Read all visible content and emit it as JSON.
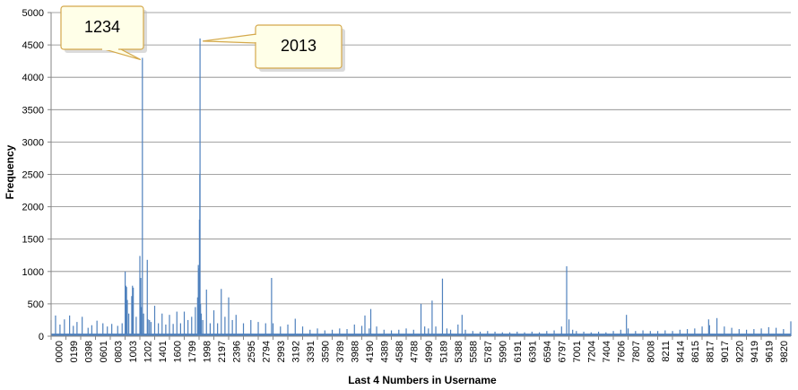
{
  "chart_data": {
    "type": "bar",
    "title": "",
    "xlabel": "Last 4 Numbers in Username",
    "ylabel": "Frequency",
    "ylim": [
      0,
      5000
    ],
    "y_ticks": [
      0,
      500,
      1000,
      1500,
      2000,
      2500,
      3000,
      3500,
      4000,
      4500,
      5000
    ],
    "x_range": [
      0,
      9999
    ],
    "x_tick_labels": [
      "0000",
      "0199",
      "0398",
      "0601",
      "0803",
      "1003",
      "1202",
      "1401",
      "1600",
      "1799",
      "1998",
      "2197",
      "2396",
      "2595",
      "2794",
      "2993",
      "3192",
      "3391",
      "3590",
      "3789",
      "3988",
      "4190",
      "4389",
      "4588",
      "4788",
      "4990",
      "5189",
      "5388",
      "5588",
      "5787",
      "5990",
      "6191",
      "6391",
      "6594",
      "6797",
      "7001",
      "7204",
      "7404",
      "7606",
      "7807",
      "8008",
      "8211",
      "8414",
      "8615",
      "8817",
      "9017",
      "9220",
      "9419",
      "9619",
      "9820"
    ],
    "bar_color": "#4F81BD",
    "gridlines": true,
    "points": [
      {
        "x": 0,
        "y": 250
      },
      {
        "x": 60,
        "y": 320
      },
      {
        "x": 120,
        "y": 180
      },
      {
        "x": 180,
        "y": 260
      },
      {
        "x": 250,
        "y": 320
      },
      {
        "x": 300,
        "y": 160
      },
      {
        "x": 350,
        "y": 220
      },
      {
        "x": 420,
        "y": 300
      },
      {
        "x": 500,
        "y": 130
      },
      {
        "x": 550,
        "y": 170
      },
      {
        "x": 620,
        "y": 240
      },
      {
        "x": 700,
        "y": 200
      },
      {
        "x": 760,
        "y": 150
      },
      {
        "x": 820,
        "y": 190
      },
      {
        "x": 900,
        "y": 160
      },
      {
        "x": 960,
        "y": 200
      },
      {
        "x": 1001,
        "y": 1000
      },
      {
        "x": 1010,
        "y": 780
      },
      {
        "x": 1020,
        "y": 760
      },
      {
        "x": 1030,
        "y": 560
      },
      {
        "x": 1050,
        "y": 350
      },
      {
        "x": 1090,
        "y": 620
      },
      {
        "x": 1100,
        "y": 780
      },
      {
        "x": 1111,
        "y": 750
      },
      {
        "x": 1150,
        "y": 300
      },
      {
        "x": 1200,
        "y": 1240
      },
      {
        "x": 1212,
        "y": 900
      },
      {
        "x": 1220,
        "y": 450
      },
      {
        "x": 1234,
        "y": 4300
      },
      {
        "x": 1250,
        "y": 350
      },
      {
        "x": 1300,
        "y": 1180
      },
      {
        "x": 1310,
        "y": 260
      },
      {
        "x": 1330,
        "y": 250
      },
      {
        "x": 1350,
        "y": 220
      },
      {
        "x": 1400,
        "y": 470
      },
      {
        "x": 1450,
        "y": 200
      },
      {
        "x": 1500,
        "y": 350
      },
      {
        "x": 1550,
        "y": 180
      },
      {
        "x": 1600,
        "y": 330
      },
      {
        "x": 1650,
        "y": 190
      },
      {
        "x": 1700,
        "y": 380
      },
      {
        "x": 1750,
        "y": 200
      },
      {
        "x": 1800,
        "y": 380
      },
      {
        "x": 1850,
        "y": 250
      },
      {
        "x": 1900,
        "y": 300
      },
      {
        "x": 1950,
        "y": 450
      },
      {
        "x": 1980,
        "y": 600
      },
      {
        "x": 1990,
        "y": 1100
      },
      {
        "x": 2000,
        "y": 1050
      },
      {
        "x": 2005,
        "y": 1800
      },
      {
        "x": 2010,
        "y": 2500
      },
      {
        "x": 2013,
        "y": 4600
      },
      {
        "x": 2020,
        "y": 500
      },
      {
        "x": 2030,
        "y": 350
      },
      {
        "x": 2050,
        "y": 250
      },
      {
        "x": 2100,
        "y": 720
      },
      {
        "x": 2150,
        "y": 200
      },
      {
        "x": 2200,
        "y": 400
      },
      {
        "x": 2250,
        "y": 200
      },
      {
        "x": 2300,
        "y": 730
      },
      {
        "x": 2350,
        "y": 300
      },
      {
        "x": 2400,
        "y": 600
      },
      {
        "x": 2450,
        "y": 250
      },
      {
        "x": 2500,
        "y": 330
      },
      {
        "x": 2600,
        "y": 200
      },
      {
        "x": 2700,
        "y": 250
      },
      {
        "x": 2800,
        "y": 220
      },
      {
        "x": 2900,
        "y": 200
      },
      {
        "x": 2980,
        "y": 900
      },
      {
        "x": 3000,
        "y": 200
      },
      {
        "x": 3100,
        "y": 150
      },
      {
        "x": 3200,
        "y": 180
      },
      {
        "x": 3300,
        "y": 270
      },
      {
        "x": 3400,
        "y": 150
      },
      {
        "x": 3500,
        "y": 100
      },
      {
        "x": 3600,
        "y": 120
      },
      {
        "x": 3700,
        "y": 90
      },
      {
        "x": 3800,
        "y": 100
      },
      {
        "x": 3900,
        "y": 120
      },
      {
        "x": 4000,
        "y": 110
      },
      {
        "x": 4100,
        "y": 180
      },
      {
        "x": 4200,
        "y": 160
      },
      {
        "x": 4242,
        "y": 320
      },
      {
        "x": 4300,
        "y": 120
      },
      {
        "x": 4321,
        "y": 420
      },
      {
        "x": 4400,
        "y": 150
      },
      {
        "x": 4500,
        "y": 100
      },
      {
        "x": 4600,
        "y": 90
      },
      {
        "x": 4700,
        "y": 100
      },
      {
        "x": 4800,
        "y": 120
      },
      {
        "x": 4900,
        "y": 100
      },
      {
        "x": 5000,
        "y": 500
      },
      {
        "x": 5050,
        "y": 150
      },
      {
        "x": 5100,
        "y": 120
      },
      {
        "x": 5150,
        "y": 550
      },
      {
        "x": 5200,
        "y": 150
      },
      {
        "x": 5290,
        "y": 890
      },
      {
        "x": 5350,
        "y": 120
      },
      {
        "x": 5400,
        "y": 100
      },
      {
        "x": 5500,
        "y": 180
      },
      {
        "x": 5555,
        "y": 330
      },
      {
        "x": 5600,
        "y": 100
      },
      {
        "x": 5700,
        "y": 80
      },
      {
        "x": 5800,
        "y": 70
      },
      {
        "x": 5900,
        "y": 80
      },
      {
        "x": 6000,
        "y": 70
      },
      {
        "x": 6100,
        "y": 60
      },
      {
        "x": 6200,
        "y": 60
      },
      {
        "x": 6300,
        "y": 70
      },
      {
        "x": 6400,
        "y": 60
      },
      {
        "x": 6500,
        "y": 70
      },
      {
        "x": 6600,
        "y": 60
      },
      {
        "x": 6700,
        "y": 80
      },
      {
        "x": 6800,
        "y": 90
      },
      {
        "x": 6900,
        "y": 150
      },
      {
        "x": 6969,
        "y": 1080
      },
      {
        "x": 7000,
        "y": 260
      },
      {
        "x": 7050,
        "y": 100
      },
      {
        "x": 7100,
        "y": 80
      },
      {
        "x": 7200,
        "y": 70
      },
      {
        "x": 7300,
        "y": 60
      },
      {
        "x": 7400,
        "y": 70
      },
      {
        "x": 7500,
        "y": 60
      },
      {
        "x": 7600,
        "y": 80
      },
      {
        "x": 7700,
        "y": 100
      },
      {
        "x": 7777,
        "y": 330
      },
      {
        "x": 7800,
        "y": 120
      },
      {
        "x": 7900,
        "y": 80
      },
      {
        "x": 8000,
        "y": 90
      },
      {
        "x": 8100,
        "y": 80
      },
      {
        "x": 8200,
        "y": 80
      },
      {
        "x": 8300,
        "y": 90
      },
      {
        "x": 8400,
        "y": 80
      },
      {
        "x": 8500,
        "y": 100
      },
      {
        "x": 8600,
        "y": 110
      },
      {
        "x": 8700,
        "y": 120
      },
      {
        "x": 8800,
        "y": 150
      },
      {
        "x": 8888,
        "y": 260
      },
      {
        "x": 8900,
        "y": 170
      },
      {
        "x": 9000,
        "y": 280
      },
      {
        "x": 9100,
        "y": 150
      },
      {
        "x": 9200,
        "y": 130
      },
      {
        "x": 9300,
        "y": 110
      },
      {
        "x": 9400,
        "y": 100
      },
      {
        "x": 9500,
        "y": 110
      },
      {
        "x": 9600,
        "y": 120
      },
      {
        "x": 9700,
        "y": 140
      },
      {
        "x": 9800,
        "y": 130
      },
      {
        "x": 9900,
        "y": 110
      },
      {
        "x": 9999,
        "y": 230
      }
    ],
    "annotations": [
      {
        "text": "1234",
        "x": 1234,
        "y": 4300
      },
      {
        "text": "2013",
        "x": 2013,
        "y": 4600
      }
    ]
  }
}
